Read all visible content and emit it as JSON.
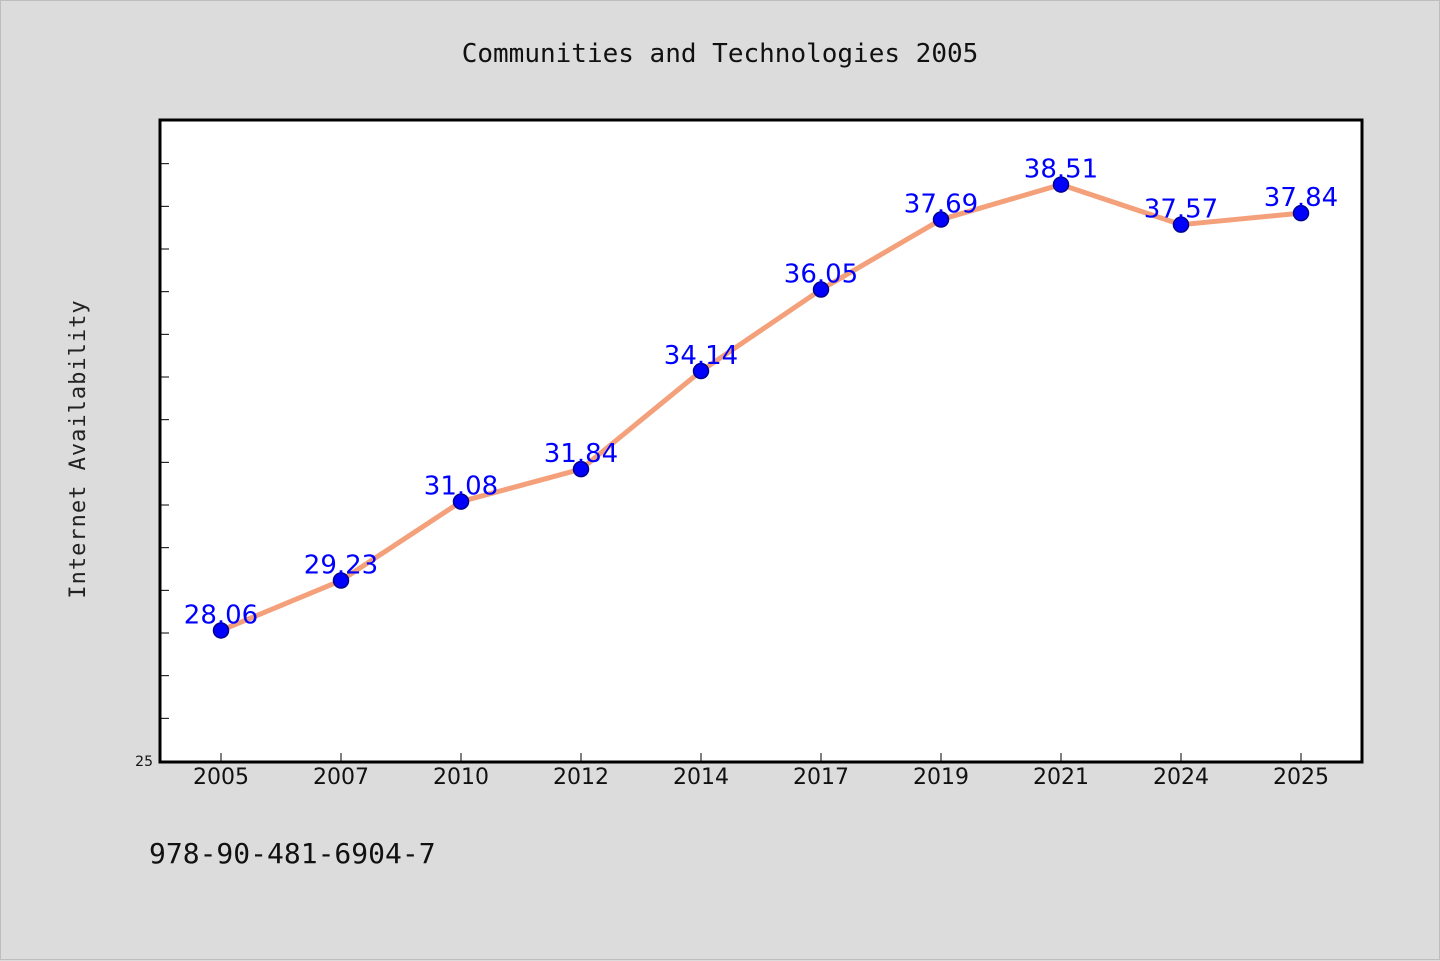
{
  "footer": {
    "isbn": "978-90-481-6904-7"
  },
  "colors": {
    "line": "#f4a07a",
    "marker": "#0000ff",
    "marker_edge": "#00008b",
    "label": "#0000ff",
    "background": "#dcdcdc",
    "plot_bg": "#ffffff"
  },
  "chart_data": {
    "type": "line",
    "title": "Communities and Technologies 2005",
    "xlabel": "",
    "ylabel": "Internet Availability",
    "categories": [
      "2005",
      "2007",
      "2010",
      "2012",
      "2014",
      "2017",
      "2019",
      "2021",
      "2024",
      "2025"
    ],
    "series": [
      {
        "values": [
          28.06,
          29.23,
          31.08,
          31.84,
          34.14,
          36.05,
          37.69,
          38.51,
          37.57,
          37.84
        ]
      }
    ],
    "ylim": [
      25,
      40
    ],
    "ytick_labels": [
      "25"
    ],
    "grid": false,
    "legend": "none",
    "data_labels": [
      "28.06",
      "29.23",
      "31.08",
      "31.84",
      "34.14",
      "36.05",
      "37.69",
      "38.51",
      "37.57",
      "37.84"
    ]
  }
}
